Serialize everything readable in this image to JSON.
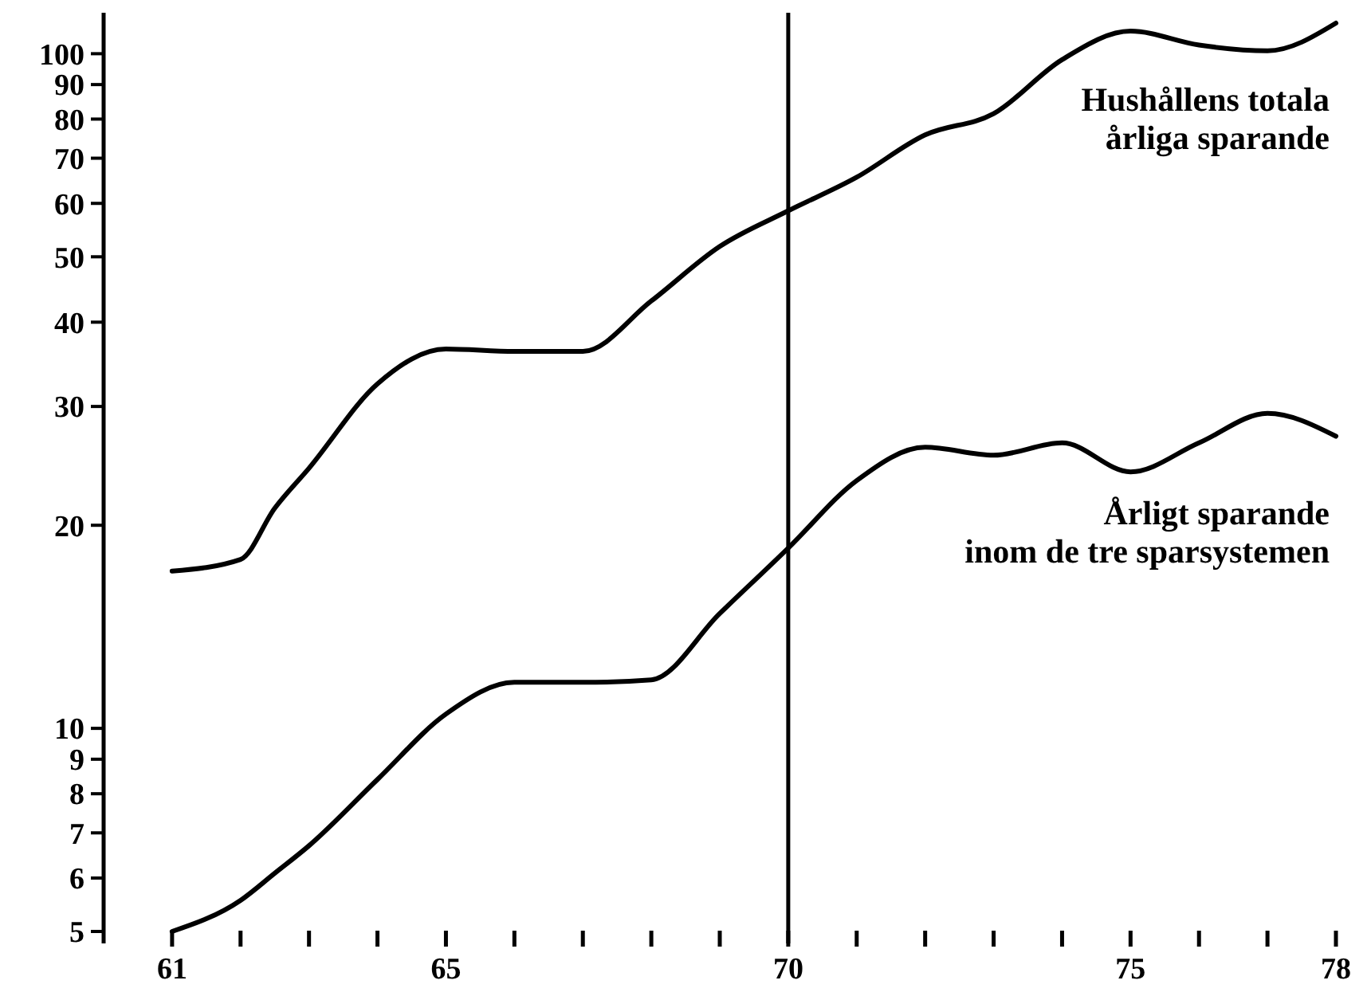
{
  "chart_data": {
    "type": "line",
    "log": "y",
    "xlim": [
      60,
      78
    ],
    "ylim": [
      4.8,
      115
    ],
    "x": [
      61,
      62,
      62.5,
      63,
      64,
      65,
      66,
      67,
      68,
      69,
      70,
      71,
      72,
      73,
      74,
      75,
      76,
      77,
      78
    ],
    "xticks": [
      61,
      {
        "value": 62,
        "label": null
      },
      {
        "value": 63,
        "label": null
      },
      {
        "value": 64,
        "label": null
      },
      65,
      {
        "value": 66,
        "label": null
      },
      {
        "value": 67,
        "label": null
      },
      {
        "value": 68,
        "label": null
      },
      {
        "value": 69,
        "label": null
      },
      70,
      {
        "value": 71,
        "label": null
      },
      {
        "value": 72,
        "label": null
      },
      {
        "value": 73,
        "label": null
      },
      {
        "value": 74,
        "label": null
      },
      75,
      {
        "value": 76,
        "label": null
      },
      {
        "value": 77,
        "label": null
      },
      78
    ],
    "yticks": [
      5,
      6,
      7,
      8,
      9,
      10,
      20,
      30,
      40,
      50,
      60,
      70,
      80,
      90,
      100
    ],
    "series": [
      {
        "name": "Hushållens totala årliga sparande",
        "color": "#000000",
        "values": [
          17.1,
          17.8,
          21.2,
          24.3,
          32.4,
          36.5,
          36.2,
          36.2,
          43,
          51.8,
          58.5,
          65.6,
          75.8,
          81.5,
          98,
          108,
          103,
          101,
          111
        ]
      },
      {
        "name": "Årligt sparande inom de tre sparsystemen",
        "color": "#000000",
        "values": [
          5,
          5.56,
          6.1,
          6.7,
          8.4,
          10.5,
          11.7,
          11.7,
          11.8,
          14.8,
          18.5,
          23.3,
          26.1,
          25.4,
          26.5,
          24,
          26.5,
          29.3,
          27.1
        ]
      }
    ],
    "ref_lines": [
      {
        "axis": "x",
        "value": 70,
        "color": "#000000"
      }
    ],
    "grid": false,
    "marker": "none",
    "line_style": "solid"
  }
}
